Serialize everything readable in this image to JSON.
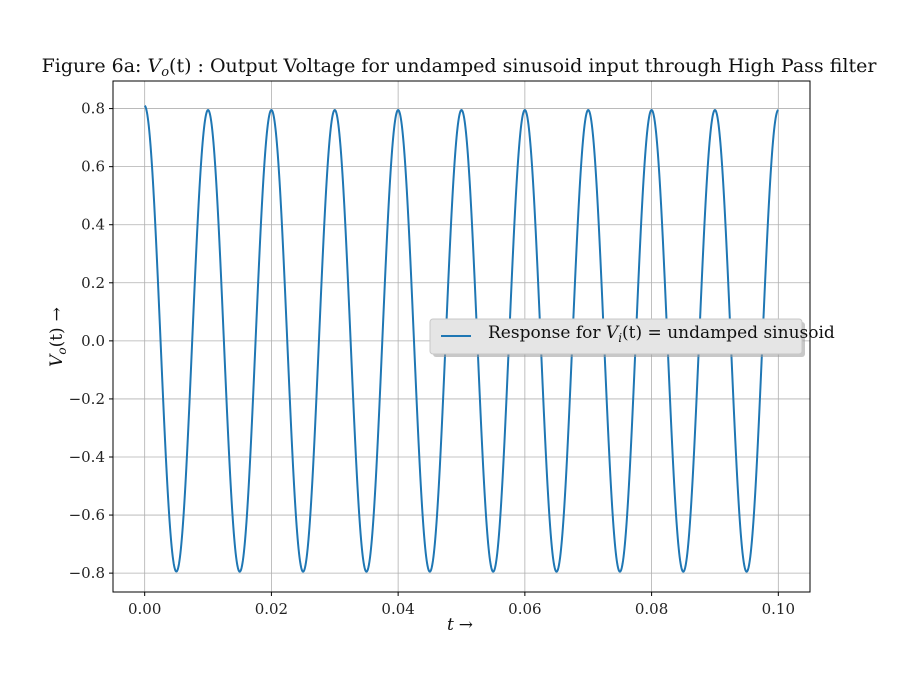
{
  "chart_data": {
    "type": "line",
    "title": "Figure 6a: V_o(t) : Output Voltage for undamped sinusoid input through High Pass filter",
    "title_parts": {
      "prefix": "Figure 6a: ",
      "symbol": "V",
      "symbol_sub": "o",
      "symbol_arg": "(t)",
      "suffix": " : Output Voltage for undamped sinusoid input through High Pass filter"
    },
    "xlabel": "t →",
    "ylabel": "V_o(t) →",
    "ylabel_parts": {
      "symbol": "V",
      "sub": "o",
      "arg": "(t)",
      "arrow": "→"
    },
    "xlabel_parts": {
      "symbol": "t",
      "arrow": "→"
    },
    "xlim": [
      -0.005,
      0.105
    ],
    "ylim": [
      -0.865,
      0.895
    ],
    "xticks": [
      0.0,
      0.02,
      0.04,
      0.06,
      0.08,
      0.1
    ],
    "xtick_labels": [
      "0.00",
      "0.02",
      "0.04",
      "0.06",
      "0.08",
      "0.10"
    ],
    "yticks": [
      -0.8,
      -0.6,
      -0.4,
      -0.2,
      0.0,
      0.2,
      0.4,
      0.6,
      0.8
    ],
    "ytick_labels": [
      "−0.8",
      "−0.6",
      "−0.4",
      "−0.2",
      "0.0",
      "0.2",
      "0.4",
      "0.6",
      "0.8"
    ],
    "grid": true,
    "legend_position": "center-right",
    "series": [
      {
        "name": "Response for V_i(t) = undamped sinusoid",
        "name_parts": {
          "prefix": "Response for ",
          "symbol": "V",
          "sub": "i",
          "arg": "(t)",
          "suffix": " = undamped sinusoid"
        },
        "color": "#1f77b4",
        "model": {
          "kind": "steady-state cosine with small decaying transient",
          "amplitude": 0.795,
          "frequency_hz": 100,
          "start_value": 0.81,
          "x_start": 0.0,
          "x_end": 0.1
        },
        "peaks": [
          [
            0.0,
            0.81
          ],
          [
            0.01,
            0.795
          ],
          [
            0.02,
            0.795
          ],
          [
            0.03,
            0.795
          ],
          [
            0.04,
            0.795
          ],
          [
            0.05,
            0.795
          ],
          [
            0.06,
            0.795
          ],
          [
            0.07,
            0.795
          ],
          [
            0.08,
            0.795
          ],
          [
            0.09,
            0.795
          ],
          [
            0.1,
            0.795
          ]
        ],
        "troughs": [
          [
            0.005,
            -0.79
          ],
          [
            0.015,
            -0.79
          ],
          [
            0.025,
            -0.79
          ],
          [
            0.035,
            -0.79
          ],
          [
            0.045,
            -0.79
          ],
          [
            0.055,
            -0.79
          ],
          [
            0.065,
            -0.79
          ],
          [
            0.075,
            -0.79
          ],
          [
            0.085,
            -0.79
          ],
          [
            0.095,
            -0.79
          ]
        ]
      }
    ]
  },
  "colors": {
    "line": "#1f77b4",
    "grid": "#b0b0b0",
    "axes": "#000000",
    "legend_bg": "#e5e5e5",
    "legend_border": "#c8c8c8"
  }
}
